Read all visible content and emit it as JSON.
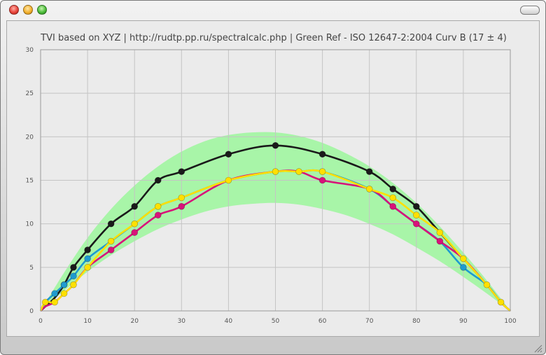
{
  "window": {
    "controls": [
      "close-button",
      "minimize-button",
      "zoom-button"
    ]
  },
  "chart_data": {
    "type": "line",
    "title": "TVI based on XYZ | http://rudtp.pp.ru/spectralcalc.php | Green Ref - ISO 12647-2:2004 Curv B (17 ± 4)",
    "xlabel": "",
    "ylabel": "",
    "xlim": [
      0,
      100
    ],
    "ylim": [
      0,
      30
    ],
    "xticks": [
      0,
      10,
      20,
      30,
      40,
      50,
      60,
      70,
      80,
      90,
      100
    ],
    "yticks": [
      0,
      5,
      10,
      15,
      20,
      25,
      30
    ],
    "grid": true,
    "reference_band": {
      "color": "#a8f5a8",
      "x": [
        0,
        5,
        10,
        15,
        20,
        25,
        30,
        35,
        40,
        45,
        50,
        55,
        60,
        65,
        70,
        75,
        80,
        85,
        90,
        95,
        100
      ],
      "upper": [
        0,
        4.4,
        8.4,
        11.7,
        14.4,
        16.6,
        18.3,
        19.5,
        20.2,
        20.5,
        20.5,
        20.1,
        19.3,
        18.1,
        16.6,
        14.7,
        12.4,
        9.7,
        6.7,
        3.5,
        0
      ],
      "lower": [
        0,
        2.3,
        4.5,
        6.4,
        8.0,
        9.4,
        10.5,
        11.4,
        12.0,
        12.3,
        12.4,
        12.2,
        11.7,
        11.0,
        10.0,
        8.8,
        7.3,
        5.7,
        3.9,
        2.0,
        0
      ]
    },
    "series": [
      {
        "color": "#1a1a1a",
        "x": [
          0,
          1,
          3,
          5,
          7,
          10,
          15,
          20,
          25,
          30,
          40,
          50,
          60,
          70,
          75,
          80,
          85,
          90,
          95,
          98,
          100
        ],
        "y": [
          0,
          0.5,
          1.5,
          3,
          5,
          7,
          10,
          12,
          15,
          16,
          18,
          19,
          18,
          16,
          14,
          12,
          9,
          6,
          3,
          1,
          0
        ],
        "markers": [
          5,
          7,
          10,
          15,
          20,
          25,
          30,
          40,
          50,
          60,
          70,
          75,
          80
        ]
      },
      {
        "color": "#1e9ad0",
        "x": [
          0,
          1,
          3,
          5,
          7,
          10,
          15,
          20,
          25,
          30,
          40,
          50,
          55,
          60,
          70,
          75,
          80,
          85,
          90,
          95,
          98,
          100
        ],
        "y": [
          0,
          1,
          2,
          3,
          4,
          6,
          8,
          10,
          12,
          13,
          15,
          16,
          16,
          16,
          14,
          12,
          10,
          8,
          5,
          3,
          1,
          0
        ],
        "markers": [
          3,
          5,
          7,
          10,
          90
        ]
      },
      {
        "color": "#d8127a",
        "x": [
          0,
          1,
          3,
          5,
          7,
          10,
          15,
          20,
          25,
          30,
          40,
          50,
          55,
          60,
          70,
          75,
          80,
          85,
          90,
          95,
          98,
          100
        ],
        "y": [
          0,
          0.5,
          1,
          2,
          3,
          5,
          7,
          9,
          11,
          12,
          15,
          16,
          16,
          15,
          14,
          12,
          10,
          8,
          6,
          3,
          1,
          0
        ],
        "markers": [
          15,
          20,
          25,
          30,
          60,
          75,
          80,
          85
        ]
      },
      {
        "color": "#ffe000",
        "x": [
          0,
          1,
          3,
          5,
          7,
          10,
          15,
          20,
          25,
          30,
          40,
          50,
          55,
          60,
          70,
          75,
          80,
          85,
          90,
          95,
          98,
          100
        ],
        "y": [
          0,
          1,
          1,
          2,
          3,
          5,
          8,
          10,
          12,
          13,
          15,
          16,
          16,
          16,
          14,
          13,
          11,
          9,
          6,
          3,
          1,
          0
        ],
        "markers": [
          1,
          3,
          5,
          7,
          10,
          15,
          20,
          25,
          30,
          40,
          50,
          55,
          60,
          70,
          75,
          80,
          85,
          90,
          95,
          98
        ]
      }
    ]
  }
}
